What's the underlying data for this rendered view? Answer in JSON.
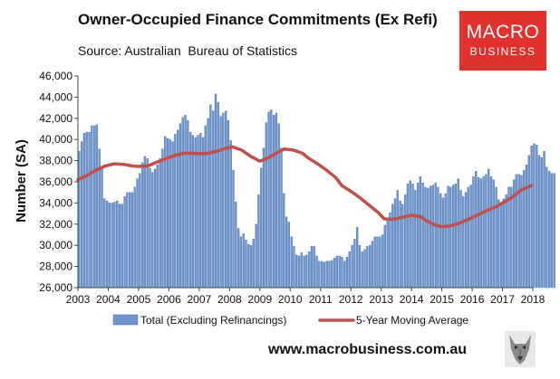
{
  "header": {
    "title": "Owner-Occupied Finance Commitments (Ex Refi)",
    "subtitle": "Source: Australian  Bureau of Statistics"
  },
  "logo": {
    "line1": "MACRO",
    "line2": "BUSINESS",
    "color": "#e0312f"
  },
  "footer": {
    "website": "www.macrobusiness.com.au",
    "mascot_icon": "wolf-icon"
  },
  "chart_data": {
    "type": "bar",
    "title": "Owner-Occupied Finance Commitments (Ex Refi)",
    "subtitle": "Source: Australian  Bureau of Statistics",
    "xlabel": "",
    "ylabel": "Number (SA)",
    "ylim": [
      26000,
      46000
    ],
    "xlim": [
      2003.0,
      2018.0
    ],
    "yticks": [
      "26,000",
      "28,000",
      "30,000",
      "32,000",
      "34,000",
      "36,000",
      "38,000",
      "40,000",
      "42,000",
      "44,000",
      "46,000"
    ],
    "xticks": [
      "2003",
      "2004",
      "2005",
      "2006",
      "2007",
      "2008",
      "2009",
      "2010",
      "2011",
      "2012",
      "2013",
      "2014",
      "2015",
      "2016",
      "2017",
      "2018"
    ],
    "grid": false,
    "legend_position": "bottom",
    "colors": {
      "bars": "#6f96cc",
      "bar_edge": "#3f67a8",
      "line": "#c0504d"
    },
    "series": [
      {
        "name": "Total (Excluding Refinancings)",
        "type": "bar",
        "start": "2003-01",
        "frequency": "monthly",
        "values": [
          38900,
          39800,
          40600,
          40700,
          40700,
          41300,
          41300,
          41400,
          39100,
          37400,
          34400,
          34200,
          34000,
          34000,
          34100,
          34200,
          33900,
          33900,
          34600,
          35000,
          35000,
          35000,
          35500,
          36300,
          36800,
          37800,
          38400,
          38200,
          37300,
          36900,
          37200,
          37600,
          38200,
          39100,
          40300,
          40100,
          40000,
          39800,
          40500,
          40900,
          41500,
          42100,
          42300,
          41800,
          40700,
          40400,
          40200,
          40400,
          40600,
          40200,
          41300,
          42000,
          43300,
          42700,
          44300,
          43500,
          42200,
          42500,
          42700,
          41800,
          39900,
          37100,
          34100,
          31600,
          30800,
          31100,
          30500,
          30100,
          30000,
          30600,
          32000,
          34800,
          37300,
          39200,
          41600,
          42600,
          42800,
          42300,
          42500,
          41500,
          39200,
          34900,
          32700,
          32200,
          30800,
          29900,
          29100,
          29000,
          29300,
          29000,
          29100,
          29400,
          29900,
          29900,
          29000,
          28500,
          28500,
          28400,
          28500,
          28500,
          28600,
          28800,
          29000,
          29000,
          28900,
          28500,
          28900,
          29400,
          30000,
          30600,
          31700,
          30000,
          29400,
          29600,
          29900,
          30000,
          30400,
          30800,
          30800,
          30800,
          31000,
          31900,
          32600,
          33100,
          33900,
          34400,
          35200,
          34200,
          33900,
          34800,
          35800,
          36100,
          35800,
          35200,
          35900,
          36500,
          35900,
          35500,
          35400,
          35600,
          35700,
          35900,
          35500,
          34900,
          34500,
          34900,
          35600,
          35500,
          35700,
          35800,
          36300,
          35200,
          34600,
          35000,
          35500,
          35700,
          36500,
          37000,
          36400,
          36300,
          36500,
          36700,
          37200,
          36500,
          36200,
          35500,
          34300,
          33900,
          34400,
          34800,
          35500,
          35500,
          36200,
          36700,
          36700,
          36600,
          37100,
          37600,
          38500,
          39400,
          39600,
          39500,
          38500,
          38300,
          38900,
          37400,
          37000,
          36800,
          36800
        ]
      },
      {
        "name": "5-Year Moving Average",
        "type": "line",
        "x": [
          2003.0,
          2003.3,
          2003.6,
          2003.9,
          2004.2,
          2004.5,
          2004.8,
          2005.0,
          2005.3,
          2005.6,
          2005.9,
          2006.2,
          2006.5,
          2006.8,
          2007.0,
          2007.3,
          2007.6,
          2007.9,
          2008.1,
          2008.4,
          2008.7,
          2009.0,
          2009.3,
          2009.6,
          2009.8,
          2010.1,
          2010.4,
          2010.6,
          2010.9,
          2011.2,
          2011.5,
          2011.7,
          2012.0,
          2012.3,
          2012.6,
          2012.9,
          2013.1,
          2013.4,
          2013.7,
          2014.0,
          2014.3,
          2014.5,
          2014.8,
          2015.0,
          2015.3,
          2015.6,
          2015.9,
          2016.2,
          2016.5,
          2016.8,
          2017.0,
          2017.3,
          2017.6,
          2017.95
        ],
        "values": [
          36200,
          36600,
          37100,
          37500,
          37700,
          37650,
          37500,
          37450,
          37500,
          37850,
          38200,
          38500,
          38700,
          38700,
          38650,
          38700,
          38900,
          39200,
          39300,
          39000,
          38400,
          37950,
          38300,
          38800,
          39100,
          39000,
          38700,
          38250,
          37700,
          37100,
          36400,
          35650,
          35100,
          34500,
          33800,
          33100,
          32500,
          32450,
          32650,
          32850,
          32700,
          32300,
          31900,
          31750,
          31850,
          32100,
          32500,
          32900,
          33300,
          33650,
          34000,
          34500,
          35200,
          35650
        ]
      }
    ]
  }
}
